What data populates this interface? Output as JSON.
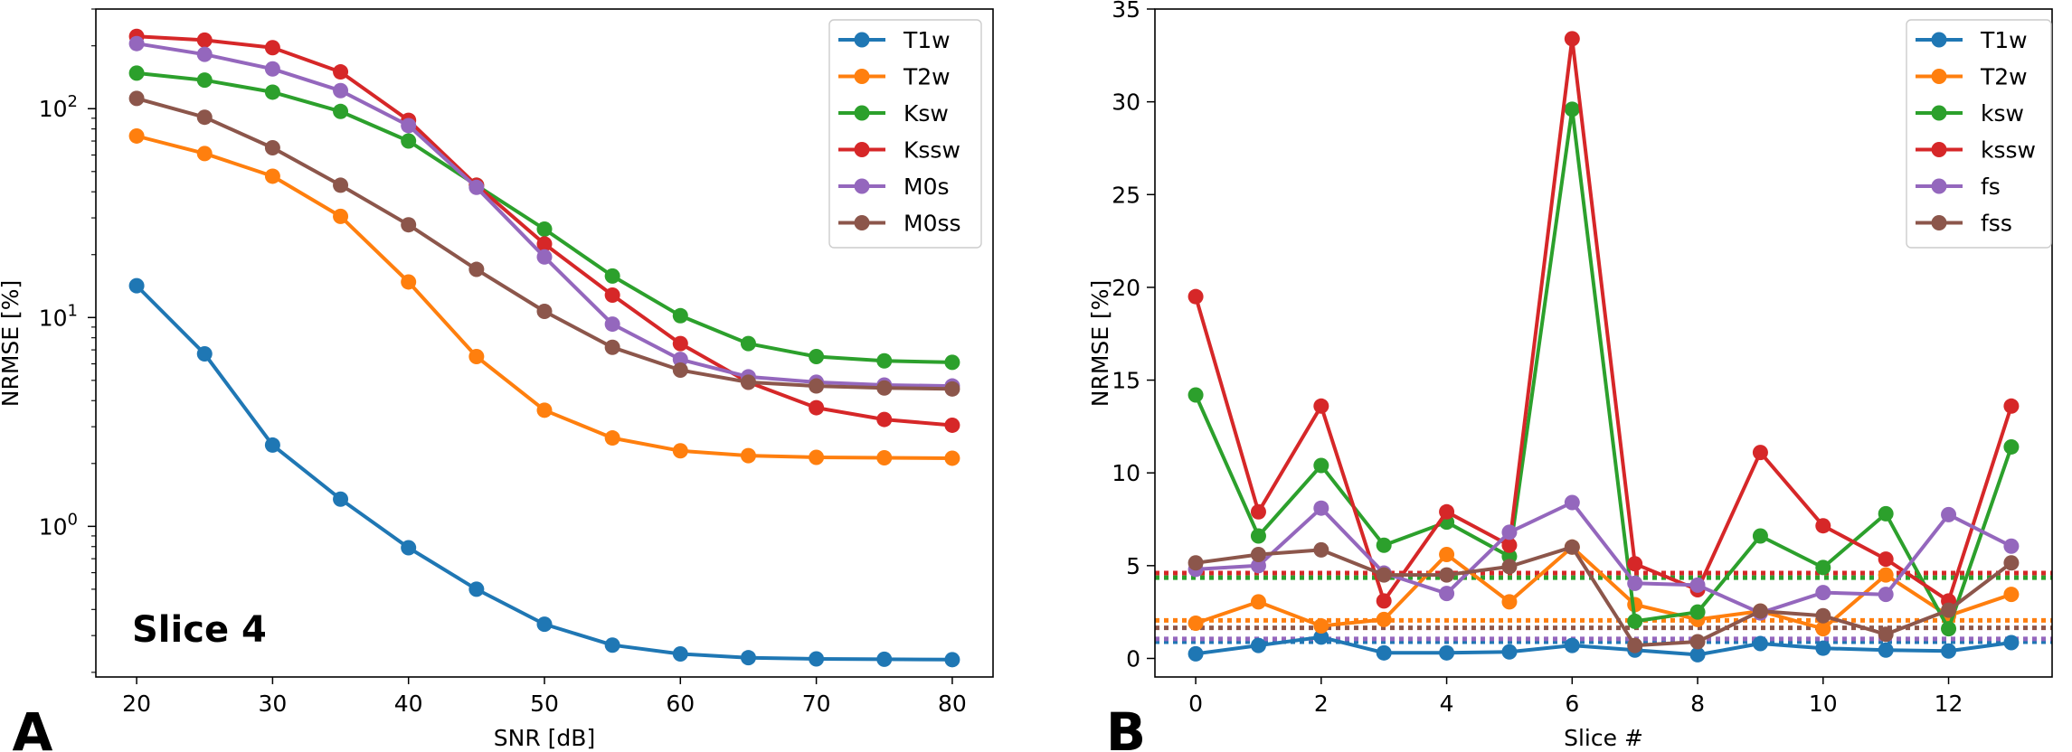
{
  "chart_data": [
    {
      "panel": "A",
      "type": "line",
      "annotation": "Slice 4",
      "xlabel": "SNR [dB]",
      "ylabel": "NRMSE [%]",
      "xscale": "linear",
      "yscale": "log",
      "xlim": [
        17,
        83
      ],
      "ylim": [
        0.19,
        300
      ],
      "xticks": [
        20,
        30,
        40,
        50,
        60,
        70,
        80
      ],
      "yticks": [
        {
          "value": 1,
          "base": "10",
          "exp": "0"
        },
        {
          "value": 10,
          "base": "10",
          "exp": "1"
        },
        {
          "value": 100,
          "base": "10",
          "exp": "2"
        }
      ],
      "grid": false,
      "legend": "top-right",
      "x": [
        20,
        25,
        30,
        35,
        40,
        45,
        50,
        55,
        60,
        65,
        70,
        75,
        80
      ],
      "series": [
        {
          "name": "T1w",
          "color": "#1f77b4",
          "values": [
            14.2,
            6.7,
            2.45,
            1.35,
            0.79,
            0.5,
            0.34,
            0.27,
            0.245,
            0.235,
            0.232,
            0.231,
            0.23
          ]
        },
        {
          "name": "T2w",
          "color": "#ff7f0e",
          "values": [
            74,
            61,
            47.5,
            30.5,
            14.8,
            6.5,
            3.6,
            2.65,
            2.3,
            2.18,
            2.14,
            2.13,
            2.12
          ]
        },
        {
          "name": "Ksw",
          "color": "#2ca02c",
          "values": [
            148,
            137,
            120,
            97,
            70,
            43,
            26.5,
            15.8,
            10.2,
            7.5,
            6.5,
            6.2,
            6.1
          ]
        },
        {
          "name": "Kssw",
          "color": "#d62728",
          "values": [
            222,
            213,
            196,
            150,
            88,
            43,
            22.5,
            12.8,
            7.5,
            4.9,
            3.7,
            3.25,
            3.05
          ]
        },
        {
          "name": "M0s",
          "color": "#9467bd",
          "values": [
            205,
            182,
            155,
            122,
            83,
            42,
            19.5,
            9.3,
            6.3,
            5.2,
            4.9,
            4.75,
            4.7
          ]
        },
        {
          "name": "M0ss",
          "color": "#8c564b",
          "values": [
            112,
            91,
            65,
            43,
            27.8,
            17,
            10.7,
            7.2,
            5.6,
            4.9,
            4.7,
            4.6,
            4.55
          ]
        }
      ]
    },
    {
      "panel": "B",
      "type": "line",
      "xlabel": "Slice #",
      "ylabel": "NRMSE [%]",
      "xscale": "linear",
      "yscale": "linear",
      "xlim": [
        -0.65,
        13.65
      ],
      "ylim": [
        -1,
        35
      ],
      "xticks": [
        0,
        2,
        4,
        6,
        8,
        10,
        12
      ],
      "yticks": [
        0,
        5,
        10,
        15,
        20,
        25,
        30,
        35
      ],
      "grid": false,
      "legend": "top-right",
      "x": [
        0,
        1,
        2,
        3,
        4,
        5,
        6,
        7,
        8,
        9,
        10,
        11,
        12,
        13
      ],
      "series": [
        {
          "name": "T1w",
          "color": "#1f77b4",
          "mean": 0.9,
          "values": [
            0.25,
            0.7,
            1.15,
            0.3,
            0.3,
            0.35,
            0.7,
            0.45,
            0.2,
            0.8,
            0.55,
            0.45,
            0.4,
            0.85
          ]
        },
        {
          "name": "T2w",
          "color": "#ff7f0e",
          "mean": 2.05,
          "values": [
            1.9,
            3.05,
            1.75,
            2.1,
            5.6,
            3.05,
            6.0,
            2.9,
            2.1,
            2.55,
            1.6,
            4.5,
            2.3,
            3.45
          ]
        },
        {
          "name": "ksw",
          "color": "#2ca02c",
          "mean": 4.35,
          "values": [
            14.2,
            6.6,
            10.4,
            6.1,
            7.35,
            5.5,
            29.6,
            2.0,
            2.5,
            6.6,
            4.9,
            7.8,
            1.6,
            11.4
          ]
        },
        {
          "name": "kssw",
          "color": "#d62728",
          "mean": 4.6,
          "values": [
            19.5,
            7.9,
            13.6,
            3.1,
            7.9,
            6.1,
            33.4,
            5.1,
            3.7,
            11.1,
            7.15,
            5.35,
            3.1,
            13.6
          ]
        },
        {
          "name": "fs",
          "color": "#9467bd",
          "mean": 1.05,
          "values": [
            4.8,
            5.0,
            8.1,
            4.6,
            3.5,
            6.8,
            8.4,
            4.05,
            3.95,
            2.45,
            3.55,
            3.45,
            7.75,
            6.05
          ]
        },
        {
          "name": "fss",
          "color": "#8c564b",
          "mean": 1.65,
          "values": [
            5.15,
            5.6,
            5.85,
            4.5,
            4.5,
            4.95,
            6.0,
            0.7,
            0.9,
            2.55,
            2.3,
            1.3,
            2.6,
            5.15
          ]
        }
      ]
    }
  ],
  "panel_labels": {
    "a": "A",
    "b": "B"
  }
}
